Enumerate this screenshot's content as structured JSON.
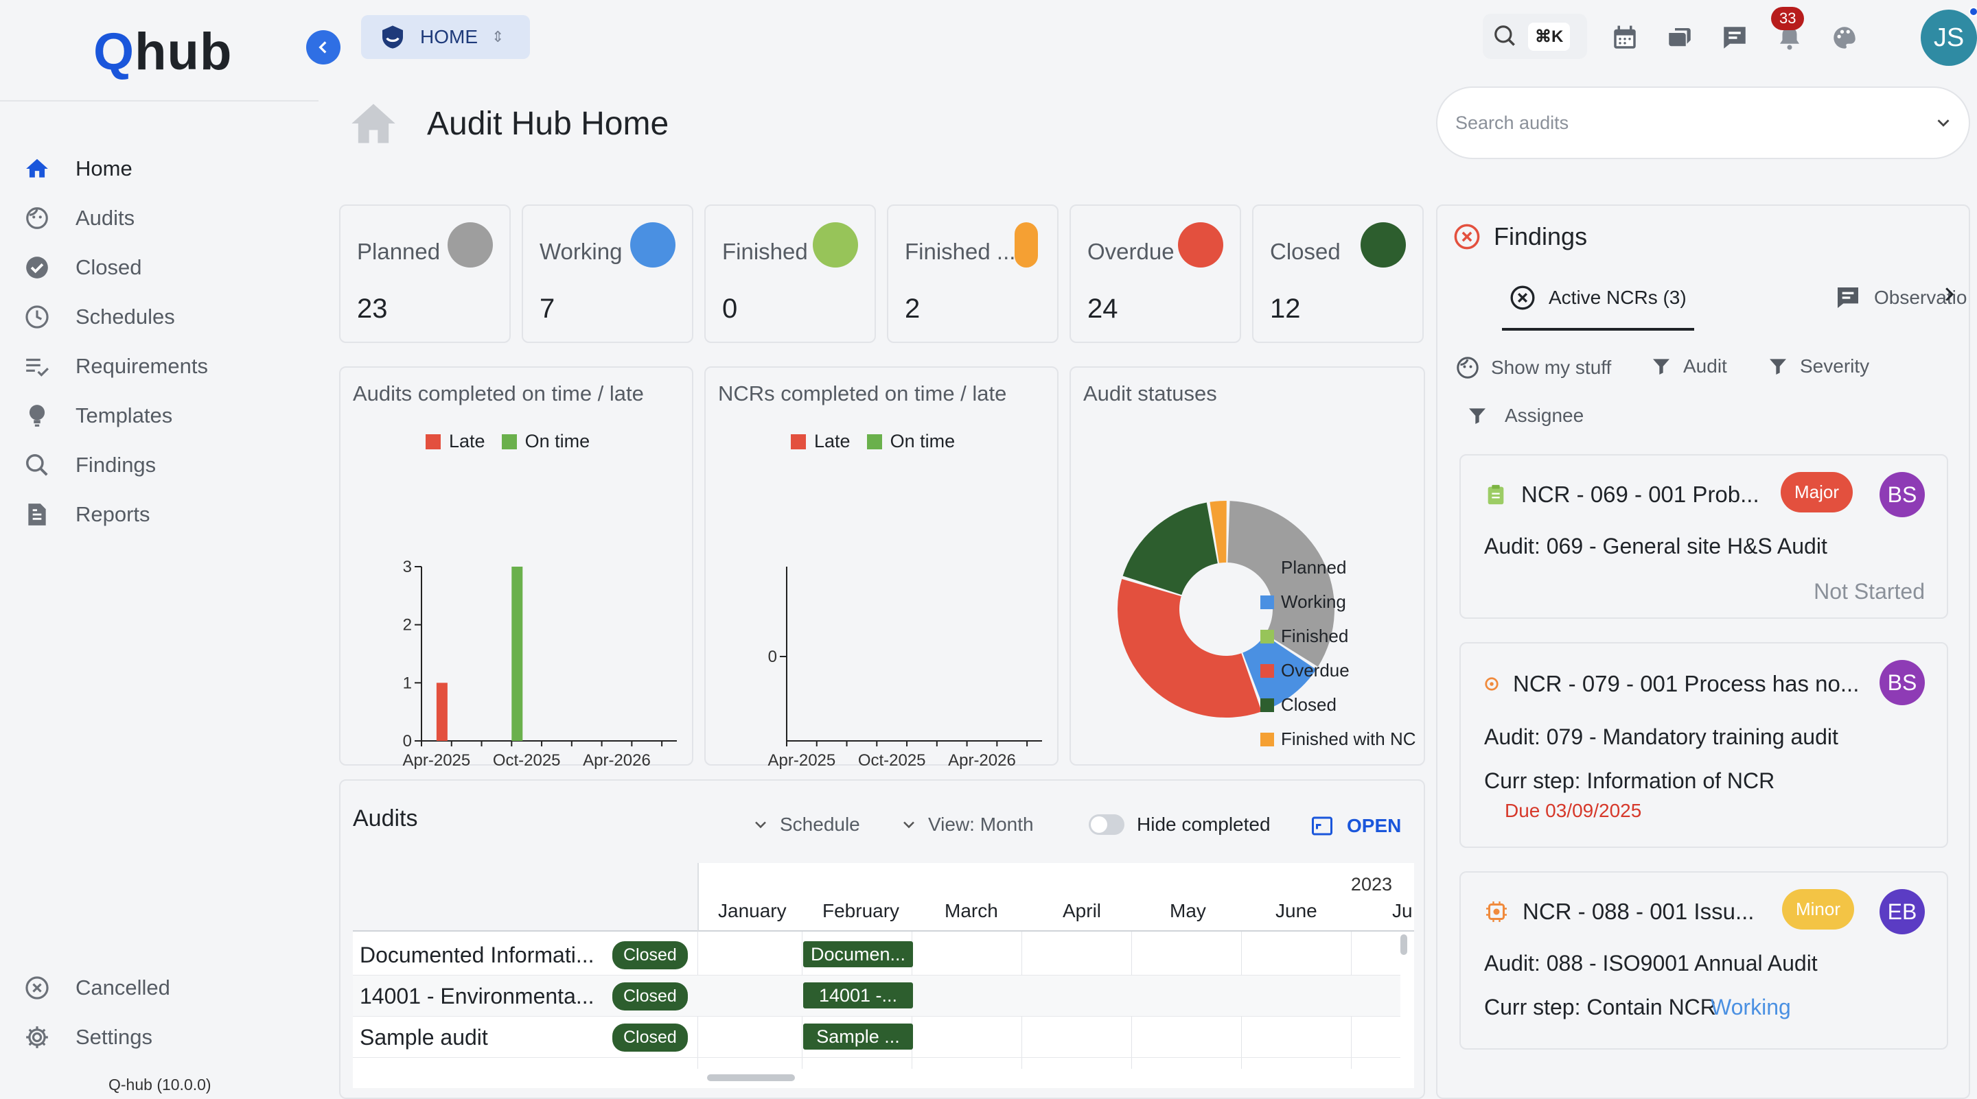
{
  "app": {
    "logo_q": "Q",
    "logo_hub": "hub",
    "version": "Q-hub (10.0.0)",
    "project_selector": "HOME"
  },
  "sidebar": {
    "items": [
      {
        "label": "Home",
        "icon": "home-icon"
      },
      {
        "label": "Audits",
        "icon": "audit-face-icon"
      },
      {
        "label": "Closed",
        "icon": "check-circle-icon"
      },
      {
        "label": "Schedules",
        "icon": "clock-icon"
      },
      {
        "label": "Requirements",
        "icon": "list-check-icon"
      },
      {
        "label": "Templates",
        "icon": "lightbulb-icon"
      },
      {
        "label": "Findings",
        "icon": "search-icon"
      },
      {
        "label": "Reports",
        "icon": "report-icon"
      }
    ],
    "bottom": [
      {
        "label": "Cancelled",
        "icon": "cancel-circle-icon"
      },
      {
        "label": "Settings",
        "icon": "gear-icon"
      }
    ]
  },
  "topbar": {
    "shortcut": "⌘K",
    "notification_count": "33",
    "user_initials": "JS"
  },
  "page": {
    "title": "Audit Hub Home",
    "search_placeholder": "Search audits"
  },
  "status_cards": [
    {
      "label": "Planned",
      "value": "23",
      "color": "#9e9e9e"
    },
    {
      "label": "Working",
      "value": "7",
      "color": "#4a90e2"
    },
    {
      "label": "Finished",
      "value": "0",
      "color": "#97c459"
    },
    {
      "label": "Finished ...",
      "value": "2",
      "color": "#f5a033"
    },
    {
      "label": "Overdue",
      "value": "24",
      "color": "#e3503e"
    },
    {
      "label": "Closed",
      "value": "12",
      "color": "#2d5e2e"
    }
  ],
  "chart_data": [
    {
      "type": "bar",
      "title": "Audits completed on time / late",
      "legend": [
        "Late",
        "On time"
      ],
      "colors": {
        "Late": "#e3503e",
        "On time": "#6ab04c"
      },
      "x_tick_labels": [
        "Apr-2025",
        "Oct-2025",
        "Apr-2026"
      ],
      "y_tick_labels": [
        "0",
        "1",
        "2",
        "3"
      ],
      "ylim": [
        0,
        3
      ],
      "series": [
        {
          "name": "Late",
          "points": [
            {
              "x": "2025-04",
              "y": 1
            }
          ]
        },
        {
          "name": "On time",
          "points": [
            {
              "x": "2025-09",
              "y": 3
            }
          ]
        }
      ]
    },
    {
      "type": "bar",
      "title": "NCRs completed on time / late",
      "legend": [
        "Late",
        "On time"
      ],
      "x_tick_labels": [
        "Apr-2025",
        "Oct-2025",
        "Apr-2026"
      ],
      "y_tick_labels": [
        "0"
      ],
      "series": [
        {
          "name": "Late",
          "points": []
        },
        {
          "name": "On time",
          "points": []
        }
      ]
    },
    {
      "type": "pie",
      "title": "Audit statuses",
      "legend_position": "right",
      "slices": [
        {
          "label": "Planned",
          "value": 23,
          "color": "#9e9e9e"
        },
        {
          "label": "Working",
          "value": 7,
          "color": "#4a90e2"
        },
        {
          "label": "Finished",
          "value": 0,
          "color": "#97c459"
        },
        {
          "label": "Overdue",
          "value": 24,
          "color": "#e3503e"
        },
        {
          "label": "Closed",
          "value": 12,
          "color": "#2d5e2e"
        },
        {
          "label": "Finished with NC",
          "value": 2,
          "color": "#f5a033"
        }
      ]
    }
  ],
  "audits_panel": {
    "title": "Audits",
    "schedule_label": "Schedule",
    "view_label": "View: Month",
    "hide_completed_label": "Hide completed",
    "open_label": "OPEN",
    "year": "2023",
    "months": [
      "January",
      "February",
      "March",
      "April",
      "May",
      "June",
      "Ju"
    ],
    "rows": [
      {
        "name": "Documented Informati...",
        "status": "Closed",
        "bar": "Documen..."
      },
      {
        "name": "14001 - Environmenta...",
        "status": "Closed",
        "bar": "14001 -..."
      },
      {
        "name": "Sample audit",
        "status": "Closed",
        "bar": "Sample ..."
      }
    ]
  },
  "findings": {
    "title": "Findings",
    "tabs": [
      {
        "label": "Active NCRs (3)"
      },
      {
        "label": "Observatio"
      }
    ],
    "filters": [
      "Show my stuff",
      "Audit",
      "Severity",
      "Assignee"
    ],
    "items": [
      {
        "title": "NCR - 069 - 001 Prob...",
        "severity": "Major",
        "severity_color": "#e3503e",
        "assignee": "BS",
        "assignee_color": "#8e3bb5",
        "audit": "Audit: 069 - General site H&S Audit",
        "status": "Not Started"
      },
      {
        "title": "NCR - 079 - 001 Process has no...",
        "assignee": "BS",
        "assignee_color": "#8e3bb5",
        "audit": "Audit: 079 - Mandatory training audit",
        "step": "Curr step: Information of NCR",
        "due": "Due 03/09/2025"
      },
      {
        "title": "NCR - 088 - 001 Issu...",
        "severity": "Minor",
        "severity_color": "#f3c445",
        "assignee": "EB",
        "assignee_color": "#5b3cc4",
        "audit": "Audit: 088 - ISO9001 Annual Audit",
        "step": "Curr step: Contain NCR",
        "step_status": "Working"
      }
    ]
  }
}
